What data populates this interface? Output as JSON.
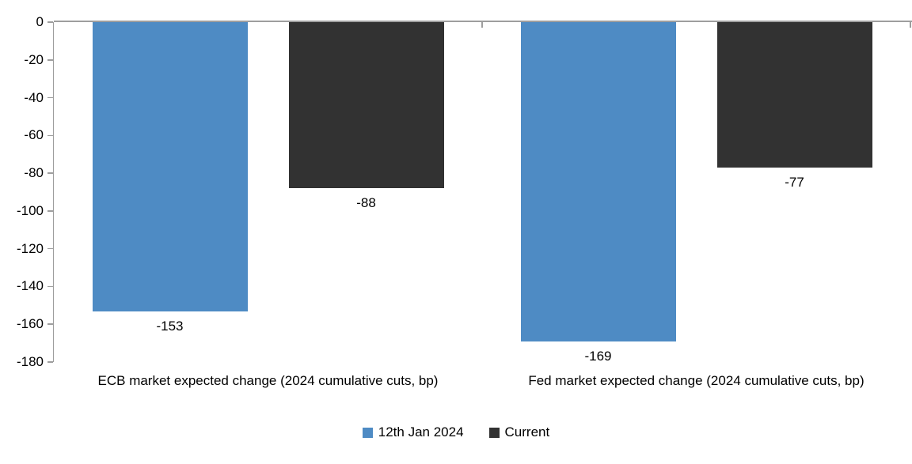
{
  "chart_data": {
    "type": "bar",
    "title": "",
    "xlabel": "",
    "ylabel": "",
    "categories": [
      "ECB market expected change (2024 cumulative cuts, bp)",
      "Fed market expected change (2024 cumulative cuts, bp)"
    ],
    "series": [
      {
        "name": "12th Jan 2024",
        "color": "#4E8BC4",
        "values": [
          -153,
          -169
        ],
        "data_labels": [
          "-153",
          "-169"
        ]
      },
      {
        "name": "Current",
        "color": "#323232",
        "values": [
          -88,
          -77
        ],
        "data_labels": [
          "-88",
          "-77"
        ]
      }
    ],
    "ylim": [
      -180,
      0
    ],
    "yticks": [
      "0",
      "-20",
      "-40",
      "-60",
      "-80",
      "-100",
      "-120",
      "-140",
      "-160",
      "-180"
    ],
    "grid": false,
    "legend_position": "bottom",
    "axis_color": "#9E9E9E",
    "text_color": "#000000",
    "background": "#FFFFFF"
  }
}
